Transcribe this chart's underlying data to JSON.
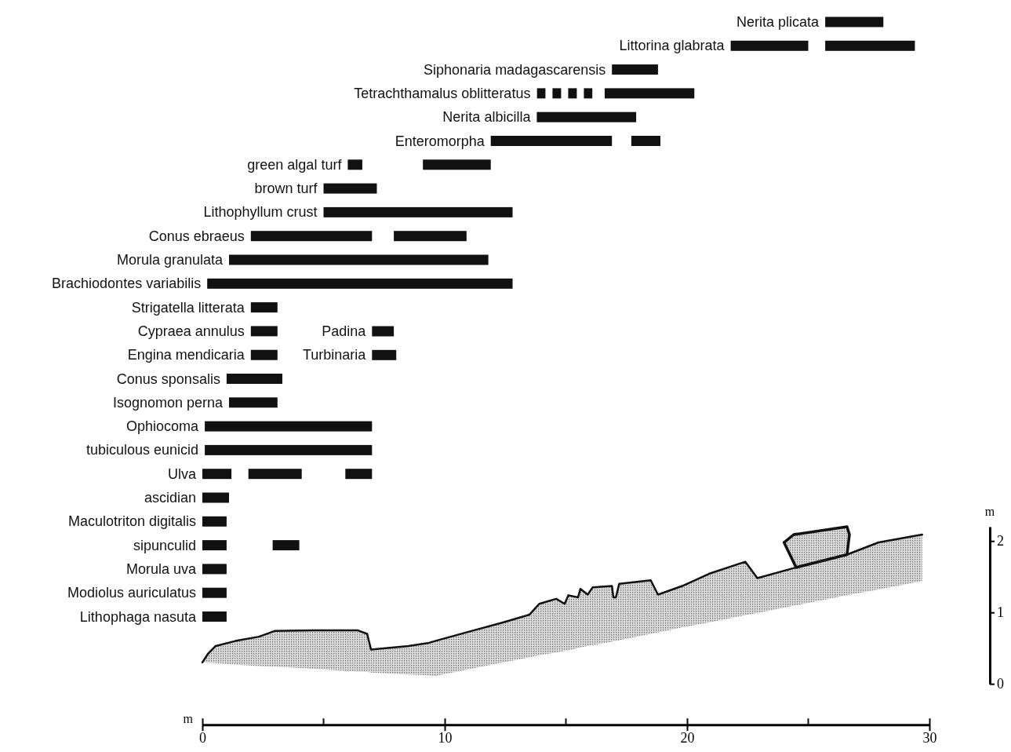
{
  "chart_data": [
    {
      "type": "bar",
      "orientation": "horizontal",
      "tick_labels": "y",
      "grid": false,
      "categories": [
        "Nerita  plicata",
        "Littorina glabrata",
        "Siphonaria  madagascarensis",
        "Tetrachthamalus oblitteratus",
        "Nerita  albicilla",
        "Enteromorpha",
        "green algal  turf",
        "brown  turf",
        "Lithophyllum  crust",
        "Conus ebraeus",
        "Morula  granulata",
        "Brachiodontes  variabilis",
        "Strigatella  litterata",
        "Cypraea  annulus",
        "Engina  mendicaria",
        "Conus  sponsalis",
        "Isognomon  perna",
        "Ophiocoma",
        "tubiculous  eunicid",
        "Ulva",
        "ascidian",
        "Maculotriton  digitalis",
        "sipunculid",
        "Morula  uva",
        "Modiolus  auriculatus",
        "Lithophaga  nasuta"
      ],
      "series": [
        {
          "color": "#111111",
          "base": [
            25.7,
            21.8,
            16.9,
            16.6,
            13.8,
            11.9,
            6.0,
            5.0,
            5.0,
            2.0,
            1.1,
            0.2,
            2.0,
            2.0,
            2.0,
            1.0,
            1.1,
            0.1,
            0.1,
            0.0,
            0.0,
            0.0,
            0.0,
            0.0,
            0.0,
            0.0
          ],
          "values": [
            2.4,
            3.2,
            1.9,
            3.7,
            4.1,
            5.0,
            0.6,
            2.2,
            7.8,
            5.0,
            10.7,
            12.6,
            1.1,
            1.1,
            1.1,
            2.3,
            2.0,
            6.9,
            6.9,
            1.2,
            1.1,
            1.0,
            1.0,
            1.0,
            1.0,
            1.0
          ]
        },
        {
          "color": "#111111",
          "base": [
            null,
            25.7,
            null,
            null,
            null,
            17.7,
            9.1,
            null,
            null,
            7.9,
            null,
            null,
            null,
            null,
            null,
            null,
            null,
            null,
            null,
            1.9,
            null,
            null,
            2.9,
            null,
            null,
            null
          ],
          "values": [
            null,
            3.7,
            null,
            null,
            null,
            1.2,
            2.8,
            null,
            null,
            3.0,
            null,
            null,
            null,
            null,
            null,
            null,
            null,
            null,
            null,
            2.2,
            null,
            null,
            1.1,
            null,
            null,
            null
          ]
        },
        {
          "color": "#111111",
          "base": [
            null,
            null,
            null,
            null,
            null,
            null,
            null,
            null,
            null,
            null,
            null,
            null,
            null,
            null,
            null,
            null,
            null,
            null,
            null,
            5.9,
            null,
            null,
            null,
            null,
            null,
            null
          ],
          "values": [
            null,
            null,
            null,
            null,
            null,
            null,
            null,
            null,
            null,
            null,
            null,
            null,
            null,
            null,
            null,
            null,
            null,
            null,
            null,
            1.1,
            null,
            null,
            null,
            null,
            null,
            null
          ]
        },
        {
          "color": "#111111",
          "line_style": "dotted",
          "base": [
            null,
            null,
            null,
            13.8,
            null,
            null,
            null,
            null,
            null,
            null,
            null,
            null,
            null,
            null,
            null,
            null,
            null,
            null,
            null,
            null,
            null,
            null,
            null,
            null,
            null,
            null
          ],
          "values": [
            null,
            null,
            null,
            2.3,
            null,
            null,
            null,
            null,
            null,
            null,
            null,
            null,
            null,
            null,
            null,
            null,
            null,
            null,
            null,
            null,
            null,
            null,
            null,
            null,
            null,
            null
          ]
        }
      ],
      "xlim": [
        0,
        30
      ]
    },
    {
      "type": "line",
      "xlabel": "m",
      "ylabel": "m",
      "grid": false,
      "x": [
        0,
        0.23,
        0.55,
        1.36,
        2.33,
        2.98,
        4.6,
        6.4,
        6.8,
        6.96,
        8.5,
        9.3,
        9.6,
        11.1,
        12.4,
        13.5,
        13.9,
        14.6,
        14.95,
        15.1,
        15.5,
        15.6,
        15.9,
        16.1,
        16.9,
        16.96,
        17.06,
        17.2,
        18.5,
        18.8,
        19.8,
        20.9,
        22.4,
        22.9,
        24.5,
        26.6,
        27.9,
        29.7
      ],
      "series": [
        {
          "color": "#111111",
          "values": [
            0.3,
            0.42,
            0.53,
            0.6,
            0.66,
            0.74,
            0.75,
            0.75,
            0.7,
            0.48,
            0.53,
            0.57,
            0.6,
            0.74,
            0.86,
            0.97,
            1.12,
            1.19,
            1.12,
            1.24,
            1.21,
            1.33,
            1.25,
            1.35,
            1.37,
            1.21,
            1.21,
            1.4,
            1.45,
            1.25,
            1.37,
            1.54,
            1.71,
            1.48,
            1.63,
            1.81,
            1.98,
            2.09
          ],
          "upper": [
            0.3,
            0.42,
            0.53,
            0.6,
            0.66,
            0.74,
            0.75,
            0.75,
            0.7,
            0.48,
            0.53,
            0.57,
            0.6,
            0.74,
            0.86,
            0.97,
            1.12,
            1.19,
            1.12,
            1.24,
            1.21,
            1.33,
            1.25,
            1.35,
            1.37,
            1.21,
            1.21,
            1.4,
            1.45,
            1.25,
            1.37,
            1.54,
            1.71,
            1.48,
            1.63,
            1.81,
            1.98,
            2.09
          ],
          "lower": [
            0.3,
            0.3,
            0.29,
            0.27,
            0.25,
            0.24,
            0.21,
            0.17,
            0.17,
            0.16,
            0.13,
            0.12,
            0.11,
            0.21,
            0.3,
            0.37,
            0.4,
            0.44,
            0.46,
            0.47,
            0.5,
            0.51,
            0.53,
            0.54,
            0.59,
            0.6,
            0.6,
            0.61,
            0.7,
            0.72,
            0.79,
            0.86,
            0.96,
            0.99,
            1.1,
            1.24,
            1.32,
            1.44
          ]
        }
      ],
      "xlim": [
        0,
        30
      ],
      "xticks": [
        0,
        10,
        20,
        30
      ],
      "ylim": [
        0,
        2.2
      ],
      "yticks": [
        0,
        1,
        2
      ]
    },
    {
      "type": "bar",
      "orientation": "horizontal",
      "tick_labels": "y",
      "grid": false,
      "categories": [
        "Padina",
        "Turbinaria"
      ],
      "series": [
        {
          "color": "#111111",
          "base": [
            7.0,
            7.0
          ],
          "values": [
            0.9,
            1.0
          ]
        }
      ],
      "xlim": [
        0,
        30
      ]
    }
  ]
}
